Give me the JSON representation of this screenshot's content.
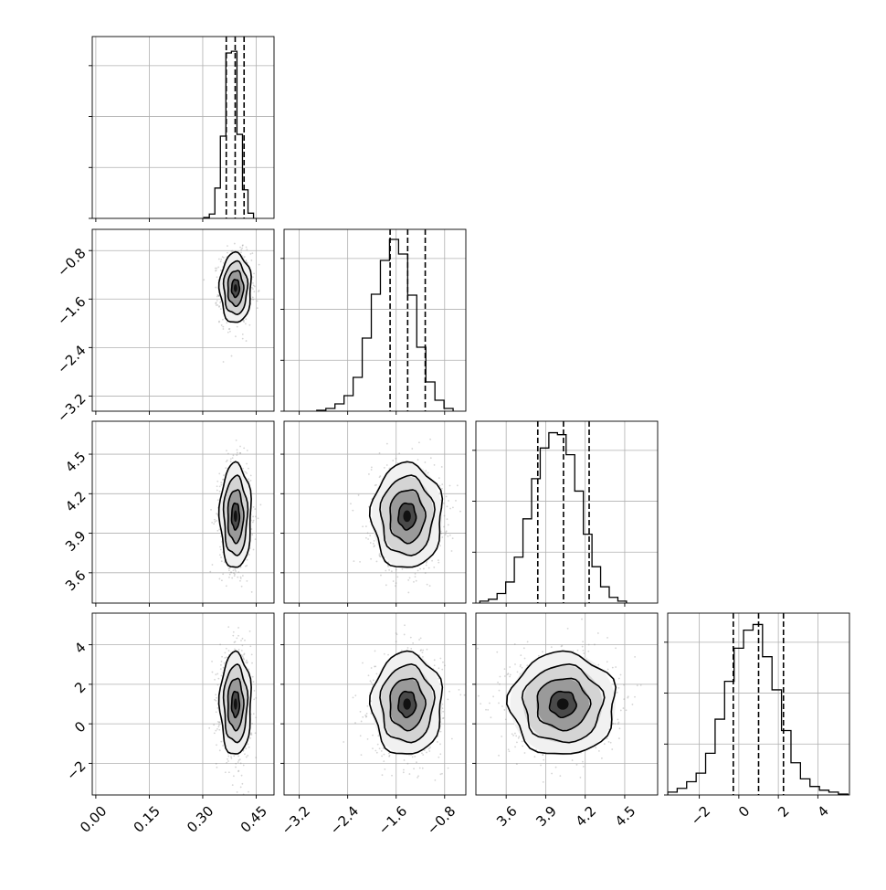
{
  "chart_data": {
    "type": "corner",
    "parameters": [
      {
        "range": [
          -0.01,
          0.5
        ],
        "ticks": [
          0.0,
          0.15,
          0.3,
          0.45
        ],
        "tick_labels": [
          "0.00",
          "0.15",
          "0.30",
          "0.45"
        ],
        "quantiles": [
          0.366,
          0.391,
          0.416
        ],
        "hist": {
          "bin_start": 0.303,
          "bin_width": 0.0155,
          "counts": [
            1,
            5,
            35,
            95,
            191,
            193,
            97,
            33,
            6
          ]
        },
        "hist_ymax": 210
      },
      {
        "range": [
          -3.45,
          -0.45
        ],
        "ticks": [
          -3.2,
          -2.4,
          -1.6,
          -0.8
        ],
        "tick_labels": [
          "−3.2",
          "−2.4",
          "−1.6",
          "−0.8"
        ],
        "quantiles": [
          -1.7,
          -1.41,
          -1.12
        ],
        "hist": {
          "bin_start": -2.91,
          "bin_width": 0.15,
          "counts": [
            1,
            3,
            8,
            17,
            37,
            80,
            128,
            165,
            188,
            172,
            127,
            70,
            32,
            12,
            3
          ]
        },
        "hist_ymax": 199
      },
      {
        "range": [
          3.37,
          4.75
        ],
        "ticks": [
          3.6,
          3.9,
          4.2,
          4.5
        ],
        "tick_labels": [
          "3.6",
          "3.9",
          "4.2",
          "4.5"
        ],
        "quantiles": [
          3.84,
          4.035,
          4.23
        ],
        "hist": {
          "bin_start": 3.4,
          "bin_width": 0.0655,
          "counts": [
            2,
            4,
            10,
            22,
            48,
            88,
            130,
            162,
            178,
            176,
            155,
            117,
            72,
            38,
            17,
            6,
            2
          ]
        },
        "hist_ymax": 190
      },
      {
        "range": [
          -3.6,
          5.6
        ],
        "ticks": [
          -2,
          0,
          2,
          4
        ],
        "tick_labels": [
          "−2",
          "0",
          "2",
          "4"
        ],
        "quantiles": [
          -0.28,
          1.0,
          2.26
        ],
        "hist": {
          "bin_start": -3.6,
          "bin_width": 0.48,
          "counts": [
            3,
            7,
            14,
            23,
            44,
            80,
            120,
            155,
            174,
            180,
            146,
            111,
            68,
            34,
            17,
            9,
            5,
            3,
            1
          ]
        },
        "hist_ymax": 192
      }
    ],
    "pairs": [
      {
        "x": 0,
        "y": 1,
        "center": [
          0.392,
          -1.42
        ],
        "sigma": [
          0.022,
          0.29
        ]
      },
      {
        "x": 0,
        "y": 2,
        "center": [
          0.392,
          4.03
        ],
        "sigma": [
          0.022,
          0.2
        ]
      },
      {
        "x": 1,
        "y": 2,
        "center": [
          -1.42,
          4.03
        ],
        "sigma": [
          0.29,
          0.2
        ]
      },
      {
        "x": 0,
        "y": 3,
        "center": [
          0.392,
          1.0
        ],
        "sigma": [
          0.022,
          1.3
        ]
      },
      {
        "x": 1,
        "y": 3,
        "center": [
          -1.42,
          1.0
        ],
        "sigma": [
          0.29,
          1.3
        ]
      },
      {
        "x": 2,
        "y": 3,
        "center": [
          4.03,
          1.0
        ],
        "sigma": [
          0.2,
          1.3
        ]
      }
    ],
    "contour_levels_sigma": [
      0.5,
      1.0,
      1.5,
      2.0
    ],
    "grid": true,
    "dashed_quantile_lines": true
  }
}
